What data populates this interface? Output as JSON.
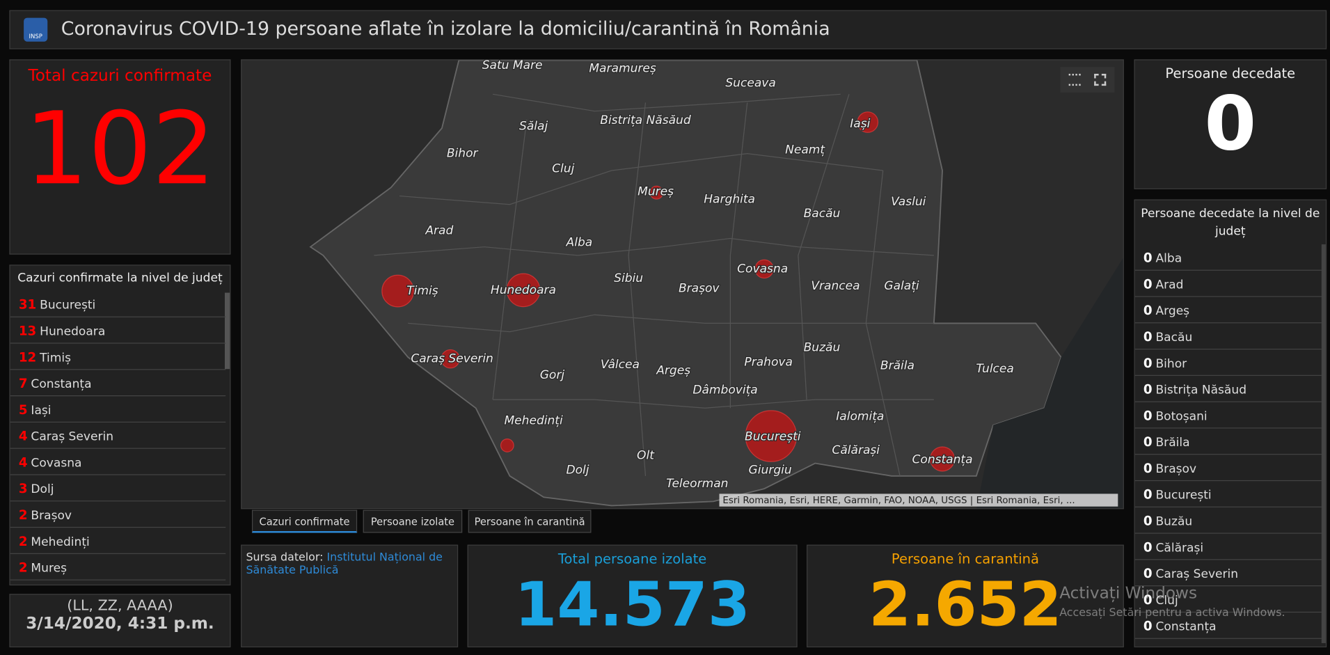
{
  "header": {
    "logo": "INSP",
    "title": "Coronavirus COVID-19 persoane aflate în izolare la domiciliu/carantină în România"
  },
  "total_confirmed": {
    "title": "Total cazuri confirmate",
    "value": 102
  },
  "confirmed_by_county": {
    "title": "Cazuri confirmate la nivel de județ",
    "rows": [
      {
        "count": 31,
        "name": "București"
      },
      {
        "count": 13,
        "name": "Hunedoara"
      },
      {
        "count": 12,
        "name": "Timiș"
      },
      {
        "count": 7,
        "name": "Constanța"
      },
      {
        "count": 5,
        "name": "Iași"
      },
      {
        "count": 4,
        "name": "Caraș Severin"
      },
      {
        "count": 4,
        "name": "Covasna"
      },
      {
        "count": 3,
        "name": "Dolj"
      },
      {
        "count": 2,
        "name": "Brașov"
      },
      {
        "count": 2,
        "name": "Mehedinți"
      },
      {
        "count": 2,
        "name": "Mureș"
      }
    ]
  },
  "date": {
    "format": "(LL, ZZ, AAAA)",
    "value": "3/14/2020, 4:31 p.m."
  },
  "map": {
    "labels": [
      "Satu Mare",
      "Maramureș",
      "Suceava",
      "Sălaj",
      "Bistrița Năsăud",
      "Iași",
      "Bihor",
      "Cluj",
      "Neamț",
      "Mureș",
      "Harghita",
      "Vaslui",
      "Bacău",
      "Arad",
      "Alba",
      "Timiș",
      "Hunedoara",
      "Sibiu",
      "Brașov",
      "Covasna",
      "Vrancea",
      "Galați",
      "Caraș Severin",
      "Gorj",
      "Vâlcea",
      "Argeș",
      "Prahova",
      "Buzău",
      "Brăila",
      "Tulcea",
      "Dâmbovița",
      "Ialomița",
      "Mehedinți",
      "București",
      "Călărași",
      "Constanța",
      "Olt",
      "Dolj",
      "Giurgiu",
      "Teleorman"
    ],
    "attribution": "Esri Romania, Esri, HERE, Garmin, FAO, NOAA, USGS | Esri Romania, Esri, ..."
  },
  "tabs": [
    "Cazuri confirmate",
    "Persoane izolate",
    "Persoane în carantină"
  ],
  "source": {
    "label": "Sursa datelor:",
    "link": "Institutul Național de Sănătate Publică"
  },
  "isolated": {
    "title": "Total persoane izolate",
    "value": "14.573"
  },
  "quarantine": {
    "title": "Persoane în carantină",
    "value": "2.652"
  },
  "deaths": {
    "title": "Persoane decedate",
    "value": 0
  },
  "deaths_by_county": {
    "title": "Persoane decedate la nivel de județ",
    "rows": [
      {
        "count": 0,
        "name": "Alba"
      },
      {
        "count": 0,
        "name": "Arad"
      },
      {
        "count": 0,
        "name": "Argeș"
      },
      {
        "count": 0,
        "name": "Bacău"
      },
      {
        "count": 0,
        "name": "Bihor"
      },
      {
        "count": 0,
        "name": "Bistrița Năsăud"
      },
      {
        "count": 0,
        "name": "Botoșani"
      },
      {
        "count": 0,
        "name": "Brăila"
      },
      {
        "count": 0,
        "name": "Brașov"
      },
      {
        "count": 0,
        "name": "București"
      },
      {
        "count": 0,
        "name": "Buzău"
      },
      {
        "count": 0,
        "name": "Călărași"
      },
      {
        "count": 0,
        "name": "Caraș Severin"
      },
      {
        "count": 0,
        "name": "Cluj"
      },
      {
        "count": 0,
        "name": "Constanța"
      }
    ]
  },
  "watermark": {
    "title": "Activați Windows",
    "text": "Accesați Setări pentru a activa Windows."
  }
}
